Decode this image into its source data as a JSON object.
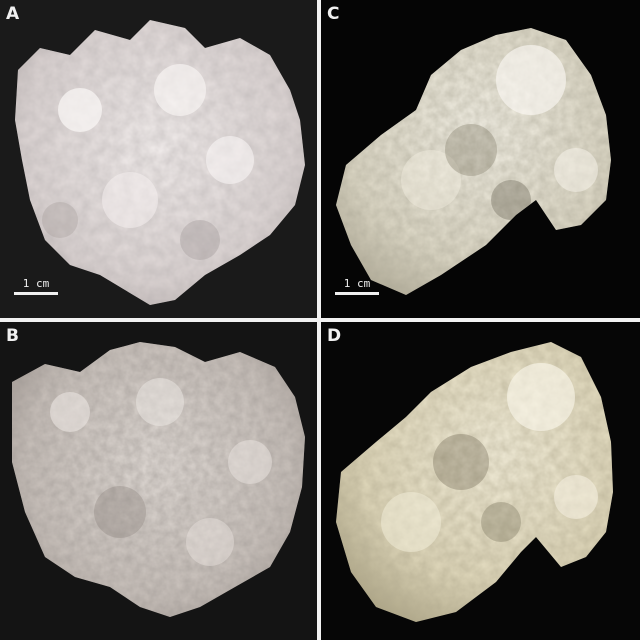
{
  "panels": {
    "a": {
      "label": "A",
      "scale": "1 cm"
    },
    "b": {
      "label": "B"
    },
    "c": {
      "label": "C",
      "scale": "1 cm"
    },
    "d": {
      "label": "D"
    }
  },
  "colors": {
    "background_a": "#1a1a1a",
    "background_c": "#050505",
    "specimen_a": "#e8e2e0",
    "specimen_b": "#cfc8c2",
    "specimen_c": "#ece8dc",
    "specimen_d": "#efe9d2",
    "label_text": "#f0f0f0"
  }
}
